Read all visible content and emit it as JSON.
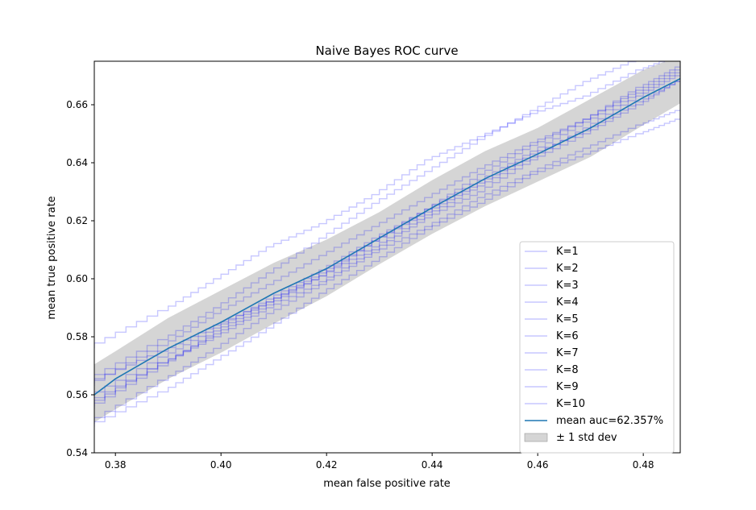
{
  "chart_data": {
    "type": "line",
    "title": "Naive Bayes ROC curve",
    "xlabel": "mean false positive rate",
    "ylabel": "mean true positive rate",
    "xlim": [
      0.376,
      0.487
    ],
    "ylim": [
      0.54,
      0.675
    ],
    "xticks": [
      0.38,
      0.4,
      0.42,
      0.44,
      0.46,
      0.48
    ],
    "yticks": [
      0.54,
      0.56,
      0.58,
      0.6,
      0.62,
      0.64,
      0.66
    ],
    "xtick_labels": [
      "0.38",
      "0.40",
      "0.42",
      "0.44",
      "0.46",
      "0.48"
    ],
    "ytick_labels": [
      "0.54",
      "0.56",
      "0.58",
      "0.60",
      "0.62",
      "0.64",
      "0.66"
    ],
    "grid": false,
    "legend_position": "lower-right",
    "colors": {
      "fold": "#0000ff",
      "mean": "#1f77b4",
      "band": "#b3b3b3"
    },
    "series": [
      {
        "name": "K=1",
        "x": [
          0.376,
          0.39,
          0.4,
          0.41,
          0.42,
          0.43,
          0.44,
          0.45,
          0.46,
          0.47,
          0.48,
          0.487
        ],
        "y": [
          0.576,
          0.589,
          0.6,
          0.611,
          0.619,
          0.629,
          0.641,
          0.649,
          0.657,
          0.663,
          0.672,
          0.677
        ]
      },
      {
        "name": "K=2",
        "x": [
          0.376,
          0.39,
          0.4,
          0.41,
          0.42,
          0.43,
          0.44,
          0.45,
          0.46,
          0.47,
          0.48,
          0.487
        ],
        "y": [
          0.564,
          0.575,
          0.584,
          0.592,
          0.602,
          0.613,
          0.623,
          0.633,
          0.643,
          0.651,
          0.661,
          0.668
        ]
      },
      {
        "name": "K=3",
        "x": [
          0.376,
          0.39,
          0.4,
          0.41,
          0.42,
          0.43,
          0.44,
          0.45,
          0.46,
          0.47,
          0.48,
          0.487
        ],
        "y": [
          0.556,
          0.571,
          0.58,
          0.59,
          0.599,
          0.61,
          0.621,
          0.63,
          0.641,
          0.65,
          0.66,
          0.668
        ]
      },
      {
        "name": "K=4",
        "x": [
          0.376,
          0.39,
          0.4,
          0.41,
          0.42,
          0.43,
          0.44,
          0.45,
          0.46,
          0.47,
          0.48,
          0.487
        ],
        "y": [
          0.555,
          0.57,
          0.582,
          0.592,
          0.601,
          0.613,
          0.624,
          0.634,
          0.644,
          0.654,
          0.664,
          0.671
        ]
      },
      {
        "name": "K=5",
        "x": [
          0.376,
          0.39,
          0.4,
          0.41,
          0.42,
          0.43,
          0.44,
          0.45,
          0.46,
          0.47,
          0.48,
          0.487
        ],
        "y": [
          0.549,
          0.561,
          0.572,
          0.583,
          0.595,
          0.606,
          0.617,
          0.626,
          0.636,
          0.643,
          0.65,
          0.655
        ]
      },
      {
        "name": "K=6",
        "x": [
          0.376,
          0.39,
          0.4,
          0.41,
          0.42,
          0.43,
          0.44,
          0.45,
          0.46,
          0.47,
          0.48,
          0.487
        ],
        "y": [
          0.559,
          0.573,
          0.583,
          0.593,
          0.603,
          0.614,
          0.624,
          0.636,
          0.646,
          0.655,
          0.666,
          0.673
        ]
      },
      {
        "name": "K=7",
        "x": [
          0.376,
          0.39,
          0.4,
          0.41,
          0.42,
          0.43,
          0.44,
          0.45,
          0.46,
          0.47,
          0.48,
          0.487
        ],
        "y": [
          0.557,
          0.571,
          0.581,
          0.591,
          0.601,
          0.611,
          0.622,
          0.632,
          0.642,
          0.652,
          0.663,
          0.67
        ]
      },
      {
        "name": "K=8",
        "x": [
          0.376,
          0.39,
          0.4,
          0.41,
          0.42,
          0.43,
          0.44,
          0.45,
          0.46,
          0.47,
          0.48,
          0.487
        ],
        "y": [
          0.55,
          0.565,
          0.576,
          0.588,
          0.598,
          0.609,
          0.618,
          0.628,
          0.637,
          0.645,
          0.653,
          0.658
        ]
      },
      {
        "name": "K=9",
        "x": [
          0.376,
          0.39,
          0.4,
          0.41,
          0.42,
          0.43,
          0.44,
          0.45,
          0.46,
          0.47,
          0.48,
          0.487
        ],
        "y": [
          0.563,
          0.577,
          0.588,
          0.598,
          0.608,
          0.618,
          0.628,
          0.638,
          0.647,
          0.655,
          0.665,
          0.672
        ]
      },
      {
        "name": "K=10",
        "x": [
          0.376,
          0.39,
          0.4,
          0.41,
          0.42,
          0.43,
          0.44,
          0.45,
          0.46,
          0.47,
          0.48,
          0.487
        ],
        "y": [
          0.565,
          0.579,
          0.59,
          0.602,
          0.614,
          0.626,
          0.637,
          0.648,
          0.658,
          0.668,
          0.676,
          0.679
        ]
      }
    ],
    "mean": {
      "name": "mean auc=62.357%",
      "x": [
        0.376,
        0.38,
        0.39,
        0.4,
        0.41,
        0.42,
        0.43,
        0.44,
        0.45,
        0.46,
        0.47,
        0.48,
        0.487
      ],
      "y": [
        0.56,
        0.5655,
        0.576,
        0.585,
        0.595,
        0.6035,
        0.614,
        0.6245,
        0.6345,
        0.643,
        0.652,
        0.6625,
        0.669
      ]
    },
    "band": {
      "name": "± 1 std dev",
      "x": [
        0.376,
        0.38,
        0.39,
        0.4,
        0.41,
        0.42,
        0.43,
        0.44,
        0.45,
        0.46,
        0.47,
        0.48,
        0.487
      ],
      "lower": [
        0.5505,
        0.555,
        0.5655,
        0.5745,
        0.5845,
        0.594,
        0.605,
        0.6155,
        0.625,
        0.6335,
        0.642,
        0.653,
        0.6605
      ],
      "upper": [
        0.5705,
        0.575,
        0.5865,
        0.596,
        0.6055,
        0.6135,
        0.623,
        0.634,
        0.644,
        0.652,
        0.662,
        0.672,
        0.677
      ]
    }
  }
}
